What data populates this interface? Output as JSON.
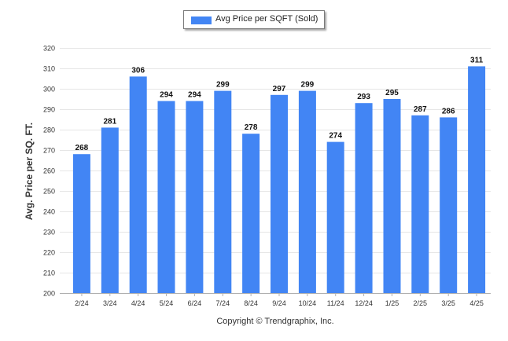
{
  "legend": {
    "label": "Avg Price per SQFT (Sold)"
  },
  "copyright": "Copyright © Trendgraphix, Inc.",
  "colors": {
    "bar": "#4285f4",
    "grid": "#e6e6e6",
    "axis": "#b0b0b0"
  },
  "chart_data": {
    "type": "bar",
    "title": "",
    "xlabel": "",
    "ylabel": "Avg. Price per SQ. FT.",
    "categories": [
      "2/24",
      "3/24",
      "4/24",
      "5/24",
      "6/24",
      "7/24",
      "8/24",
      "9/24",
      "10/24",
      "11/24",
      "12/24",
      "1/25",
      "2/25",
      "3/25",
      "4/25"
    ],
    "series": [
      {
        "name": "Avg Price per SQFT (Sold)",
        "values": [
          268,
          281,
          306,
          294,
          294,
          299,
          278,
          297,
          299,
          274,
          293,
          295,
          287,
          286,
          311
        ]
      }
    ],
    "ylim": [
      200,
      320
    ],
    "yticks": [
      200,
      210,
      220,
      230,
      240,
      250,
      260,
      270,
      280,
      290,
      300,
      310,
      320
    ],
    "grid": true,
    "legend_position": "top-center",
    "data_labels": true
  }
}
